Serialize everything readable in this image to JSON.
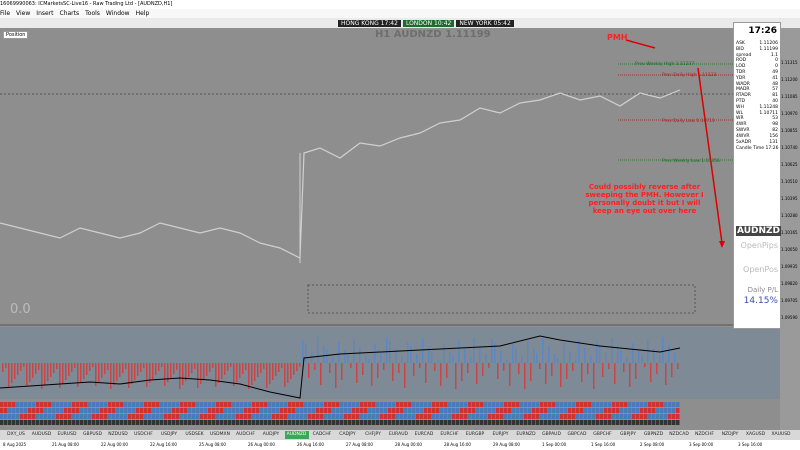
{
  "title_bar": "16069990063: ICMarketsSC-Live16 - Raw Trading Ltd - [AUDNZD,H1]",
  "menu": [
    "File",
    "View",
    "Insert",
    "Charts",
    "Tools",
    "Window",
    "Help"
  ],
  "position_tab": "Position",
  "sessions": [
    "HONG KONG 17:42",
    "LONDON 10:42",
    "NEW YORK 05:42"
  ],
  "chart_label": "H1 AUDNZD 1.11199",
  "levels": [
    "Prev Weekly High 1.11237",
    "Prev Daily High 1.11123",
    "Prev Daily Low 1.10711",
    "Prev Weekly Low 1.10356"
  ],
  "pmh": "PMH",
  "note": "Could possibly reverse after sweeping the PMH. However I personally doubt it but I will keep an eye out over here",
  "zero_label": "0.0",
  "price_axis": [
    "1.11315",
    "1.11200",
    "1.11085",
    "1.10970",
    "1.10855",
    "1.10740",
    "1.10625",
    "1.10510",
    "1.10395",
    "1.10280",
    "1.10165",
    "1.10050",
    "1.09935",
    "1.09820",
    "1.09705",
    "1.09590"
  ],
  "panel": {
    "time": "17:26",
    "rows": [
      [
        "ASK",
        "1.11206"
      ],
      [
        "BID",
        "1.11199"
      ],
      [
        "spread",
        "1.1"
      ],
      [
        "ROD",
        "0"
      ],
      [
        "LOD",
        "0"
      ],
      [
        "TDR",
        "49"
      ],
      [
        "YDR",
        "41"
      ],
      [
        "WADR",
        "48"
      ],
      [
        "MADR",
        "57"
      ],
      [
        "RTADR",
        "81"
      ],
      [
        "PTD",
        "40"
      ],
      [
        "WH",
        "1.11248"
      ],
      [
        "WL",
        "1.10711"
      ],
      [
        "WR",
        "53"
      ],
      [
        "4WR",
        "98"
      ],
      [
        "SWVR",
        "82"
      ],
      [
        "4WVR",
        "156"
      ],
      [
        "5xADR",
        "131"
      ]
    ],
    "candle_time": "Candle Time  17:26",
    "symbol": "AUDNZD",
    "open_pips": "OpenPips",
    "open_pos": "OpenPos",
    "daily_pl": "Daily P/L",
    "daily_pl_value": "14.15%"
  },
  "symbol_tabs": [
    "DXY_US",
    "AUDUSD",
    "EURUSD",
    "GBPUSD",
    "NZDUSD",
    "USDCHF",
    "USDJPY",
    "USDSEK",
    "USDMXN",
    "AUDCHF",
    "AUDJPY",
    "AUDNZD",
    "CADCHF",
    "CADJPY",
    "CHFJPY",
    "EURAUD",
    "EURCAD",
    "EURCHF",
    "EURGBP",
    "EURJPY",
    "EURNZD",
    "GBPAUD",
    "GBPCAD",
    "GBPCHF",
    "GBPJPY",
    "GBPNZD",
    "NZDCAD",
    "NZDCHF",
    "NZDJPY",
    "XAGUSD",
    "XAUUSD"
  ],
  "active_tab": 11,
  "dates": [
    "8 Aug 2025",
    "21 Aug 08:00",
    "22 Aug 00:00",
    "22 Aug 16:00",
    "25 Aug 08:00",
    "26 Aug 00:00",
    "26 Aug 16:00",
    "27 Aug 08:00",
    "28 Aug 00:00",
    "28 Aug 16:00",
    "29 Aug 08:00",
    "1 Sep 00:00",
    "1 Sep 16:00",
    "2 Sep 08:00",
    "3 Sep 00:00",
    "3 Sep 16:00"
  ]
}
